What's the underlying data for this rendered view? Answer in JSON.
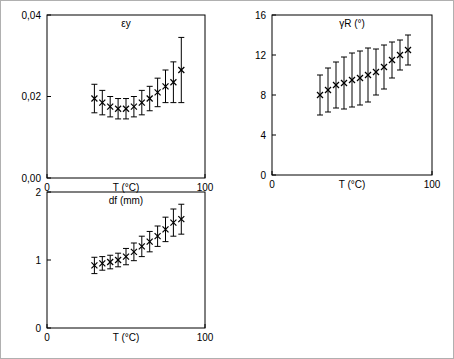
{
  "chart_data": [
    {
      "type": "scatter",
      "title": "εy",
      "x_label": "T (°C)",
      "marker": "x",
      "color": "#000000",
      "x": [
        30,
        35,
        40,
        45,
        50,
        55,
        60,
        65,
        70,
        75,
        80,
        85
      ],
      "values": [
        0.0195,
        0.0185,
        0.0175,
        0.017,
        0.017,
        0.0175,
        0.0185,
        0.0195,
        0.021,
        0.0225,
        0.0235,
        0.0265
      ],
      "errors": [
        0.0035,
        0.003,
        0.0025,
        0.0025,
        0.0025,
        0.0025,
        0.003,
        0.003,
        0.0035,
        0.004,
        0.005,
        0.008
      ],
      "xlim": [
        0,
        100
      ],
      "xticks": [
        0,
        100
      ],
      "ylim": [
        0,
        0.04
      ],
      "yticks": [
        {
          "value": 0,
          "label": "0,00"
        },
        {
          "value": 0.02,
          "label": "0,02"
        },
        {
          "value": 0.04,
          "label": "0,04"
        }
      ]
    },
    {
      "type": "scatter",
      "title": "γR (°)",
      "x_label": "T (°C)",
      "marker": "x",
      "color": "#000000",
      "x": [
        30,
        35,
        40,
        45,
        50,
        55,
        60,
        65,
        70,
        75,
        80,
        85
      ],
      "values": [
        8,
        8.5,
        9,
        9.2,
        9.5,
        9.7,
        10,
        10.3,
        10.8,
        11.5,
        12,
        12.5
      ],
      "errors": [
        2,
        2.2,
        2.3,
        2.6,
        2.7,
        2.7,
        2.7,
        2.3,
        2.2,
        1.8,
        1.5,
        1.5
      ],
      "xlim": [
        0,
        100
      ],
      "xticks": [
        0,
        100
      ],
      "ylim": [
        0,
        16
      ],
      "yticks": [
        0,
        4,
        8,
        12,
        16
      ]
    },
    {
      "type": "scatter",
      "title": "df (mm)",
      "x_label": "T (°C)",
      "marker": "x",
      "color": "#000000",
      "x": [
        30,
        35,
        40,
        45,
        50,
        55,
        60,
        65,
        70,
        75,
        80,
        85
      ],
      "values": [
        0.92,
        0.95,
        0.97,
        1.0,
        1.05,
        1.12,
        1.2,
        1.27,
        1.35,
        1.45,
        1.55,
        1.6
      ],
      "errors": [
        0.12,
        0.1,
        0.1,
        0.1,
        0.12,
        0.13,
        0.15,
        0.15,
        0.15,
        0.18,
        0.2,
        0.22
      ],
      "xlim": [
        0,
        100
      ],
      "xticks": [
        0,
        100
      ],
      "ylim": [
        0,
        2
      ],
      "yticks": [
        0,
        1,
        2
      ]
    }
  ]
}
